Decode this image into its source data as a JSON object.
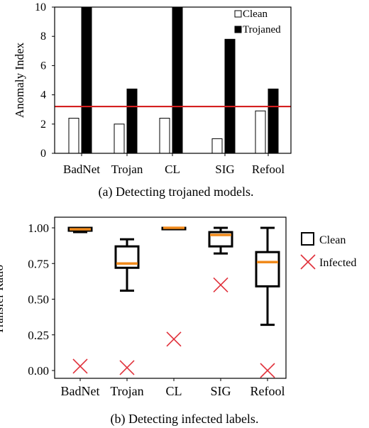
{
  "chart_data": [
    {
      "type": "bar",
      "caption": "(a) Detecting trojaned models.",
      "ylabel": "Anomaly Index",
      "xlabel": "",
      "categories": [
        "BadNet",
        "Trojan",
        "CL",
        "SIG",
        "Refool"
      ],
      "yticks": [
        "0",
        "2",
        "4",
        "6",
        "8",
        "10"
      ],
      "ylim": [
        0,
        10
      ],
      "threshold": 3.2,
      "threshold_color": "#d42020",
      "legend_position": "top-right",
      "series": [
        {
          "name": "Clean",
          "values": [
            2.4,
            2.0,
            2.4,
            1.0,
            2.9
          ],
          "fill": "#ffffff"
        },
        {
          "name": "Trojaned",
          "values": [
            10.0,
            4.4,
            10.0,
            7.8,
            4.4
          ],
          "fill": "#000000"
        }
      ]
    },
    {
      "type": "box",
      "caption": "(b) Detecting infected labels.",
      "ylabel": "Transfer Ratio",
      "xlabel": "",
      "categories": [
        "BadNet",
        "Trojan",
        "CL",
        "SIG",
        "Refool"
      ],
      "yticks": [
        "0.00",
        "0.25",
        "0.50",
        "0.75",
        "1.00"
      ],
      "ylim": [
        0,
        1.0
      ],
      "legend_position": "right",
      "median_color": "#f08a1c",
      "marker_color": "#e0303a",
      "series": [
        {
          "name": "Clean",
          "boxes": [
            {
              "whisker_low": 0.97,
              "q1": 0.98,
              "median": 0.99,
              "q3": 1.0,
              "whisker_high": 1.0
            },
            {
              "whisker_low": 0.56,
              "q1": 0.72,
              "median": 0.75,
              "q3": 0.87,
              "whisker_high": 0.92
            },
            {
              "whisker_low": 0.99,
              "q1": 0.99,
              "median": 1.0,
              "q3": 1.0,
              "whisker_high": 1.0
            },
            {
              "whisker_low": 0.82,
              "q1": 0.87,
              "median": 0.95,
              "q3": 0.97,
              "whisker_high": 1.0
            },
            {
              "whisker_low": 0.32,
              "q1": 0.59,
              "median": 0.76,
              "q3": 0.83,
              "whisker_high": 1.0
            }
          ]
        },
        {
          "name": "Infected",
          "values": [
            0.03,
            0.02,
            0.22,
            0.6,
            0.0
          ]
        }
      ]
    }
  ]
}
